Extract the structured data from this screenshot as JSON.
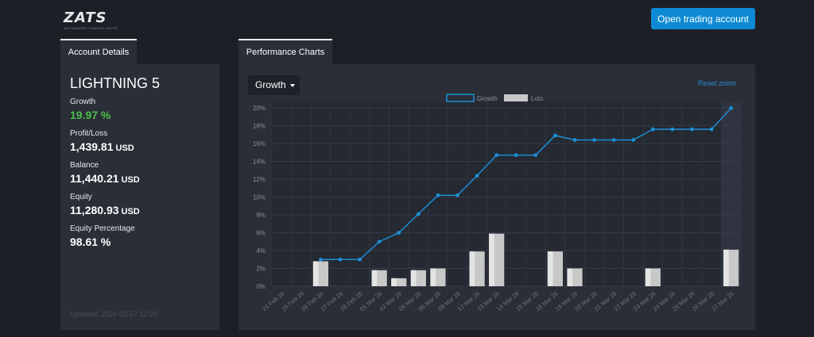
{
  "logo": {
    "name": "ZATS",
    "tagline": "AUTOMATED TRADING SUITE"
  },
  "header": {
    "open_button": "Open trading account"
  },
  "tabs": {
    "account": "Account Details",
    "performance": "Performance Charts"
  },
  "account": {
    "name": "LIGHTNING 5",
    "metrics": [
      {
        "label": "Growth",
        "value": "19.97 %",
        "unit": ""
      },
      {
        "label": "Profit/Loss",
        "value": "1,439.81",
        "unit": "USD"
      },
      {
        "label": "Balance",
        "value": "11,440.21",
        "unit": "USD"
      },
      {
        "label": "Equity",
        "value": "11,280.93",
        "unit": "USD"
      },
      {
        "label": "Equity Percentage",
        "value": "98.61 %",
        "unit": ""
      }
    ],
    "updated": "Updated: 2026-03-27 12:09"
  },
  "performance": {
    "dropdown": "Growth",
    "reset_zoom": "Reset zoom"
  },
  "colors": {
    "accent": "#0d8ad3",
    "growth_line": "#1c8fd6",
    "lots_bar": "#c8c8c8",
    "positive": "#4cbe4c"
  },
  "chart_data": {
    "type": "line",
    "categories": [
      "24 Feb 26",
      "25 Feb 26",
      "26 Feb 26",
      "27 Feb 26",
      "28 Feb 26",
      "01 Mar 26",
      "02 Mar 26",
      "05 Mar 26",
      "06 Mar 26",
      "08 Mar 26",
      "12 Mar 26",
      "13 Mar 26",
      "14 Mar 26",
      "15 Mar 26",
      "16 Mar 26",
      "19 Mar 26",
      "20 Mar 26",
      "21 Mar 26",
      "22 Mar 26",
      "23 Mar 26",
      "24 Mar 26",
      "25 Mar 26",
      "26 Mar 26",
      "27 Mar 26"
    ],
    "series": [
      {
        "name": "Growth",
        "type": "line",
        "values": [
          null,
          null,
          3.0,
          3.0,
          3.0,
          5.0,
          6.0,
          8.1,
          10.2,
          10.2,
          12.4,
          14.7,
          14.7,
          14.7,
          16.9,
          16.4,
          16.4,
          16.4,
          16.4,
          17.6,
          17.6,
          17.6,
          17.6,
          19.97
        ]
      },
      {
        "name": "Lots",
        "type": "bar",
        "values": [
          0,
          0,
          2.8,
          0,
          0,
          1.8,
          0.9,
          1.8,
          2.0,
          0,
          3.9,
          5.9,
          0,
          0,
          3.9,
          2.0,
          0,
          0,
          0,
          2.0,
          0,
          0,
          0,
          4.1
        ]
      }
    ],
    "y_ticks": [
      "0%",
      "2%",
      "4%",
      "6%",
      "8%",
      "10%",
      "12%",
      "14%",
      "16%",
      "18%",
      "20%"
    ],
    "ylim": [
      0,
      20
    ],
    "grid": true,
    "legend": "top-center"
  }
}
